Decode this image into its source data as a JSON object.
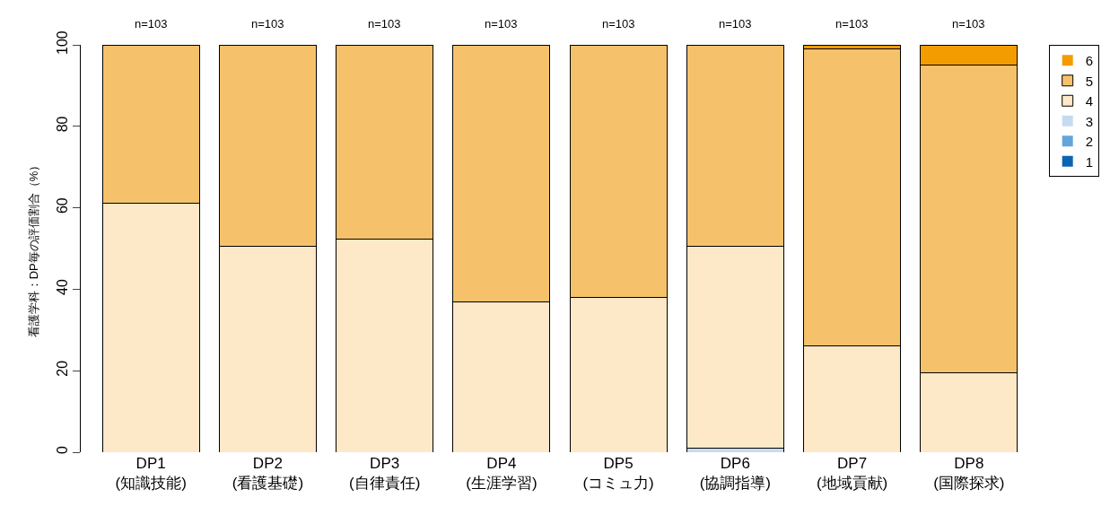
{
  "chart_data": {
    "type": "bar",
    "stacked": true,
    "ylabel": "看護学科：DP毎の評価割合（%）",
    "categories": [
      "DP1\n(知識技能)",
      "DP2\n(看護基礎)",
      "DP3\n(自律責任)",
      "DP4\n(生涯学習)",
      "DP5\n(コミュ力)",
      "DP6\n(協調指導)",
      "DP7\n(地域貢献)",
      "DP8\n(国際探求)"
    ],
    "series": [
      {
        "name": "1",
        "color": "#0a64b4",
        "values": [
          0,
          0,
          0,
          0,
          0,
          0,
          0,
          0
        ]
      },
      {
        "name": "2",
        "color": "#64a5d8",
        "values": [
          0,
          0,
          0,
          0,
          0,
          0,
          0,
          0
        ]
      },
      {
        "name": "3",
        "color": "#c6dbef",
        "values": [
          0,
          0,
          0,
          0,
          0,
          1.0,
          0,
          0
        ]
      },
      {
        "name": "4",
        "color": "#fde8c8",
        "values": [
          61.2,
          50.5,
          52.4,
          36.9,
          37.9,
          49.5,
          26.2,
          19.4
        ]
      },
      {
        "name": "5",
        "color": "#f5c26b",
        "values": [
          38.8,
          49.5,
          47.6,
          63.1,
          62.1,
          49.5,
          72.8,
          75.7
        ]
      },
      {
        "name": "6",
        "color": "#f39c00",
        "values": [
          0,
          0,
          0,
          0,
          0,
          0,
          1.0,
          4.9
        ]
      }
    ],
    "ylim": [
      0,
      100
    ],
    "yticks": [
      0,
      20,
      40,
      60,
      80,
      100
    ],
    "legend": "top right",
    "annotations": [
      "n=103",
      "n=103",
      "n=103",
      "n=103",
      "n=103",
      "n=103",
      "n=103",
      "n=103"
    ]
  }
}
